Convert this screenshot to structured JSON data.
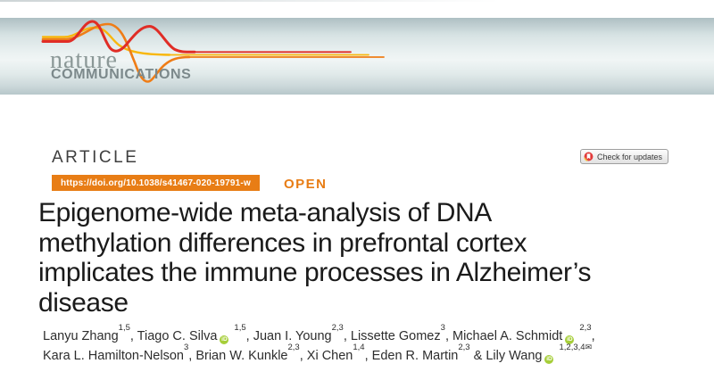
{
  "masthead": {
    "journal_name": "nature",
    "journal_subtitle": "COMMUNICATIONS"
  },
  "article": {
    "kicker": "ARTICLE",
    "doi": "https://doi.org/10.1038/s41467-020-19791-w",
    "open_label": "OPEN",
    "check_updates_label": "Check for updates",
    "title_lines": [
      "Epigenome-wide meta-analysis of DNA",
      "methylation differences in prefrontal cortex",
      "implicates the immune processes in Alzheimer’s",
      "disease"
    ]
  },
  "authors": {
    "lines": [
      [
        {
          "name": "Lanyu Zhang",
          "affiliations": "1,5",
          "orcid": false,
          "email": false,
          "sep": ", "
        },
        {
          "name": "Tiago C. Silva",
          "affiliations": "1,5",
          "orcid": true,
          "email": false,
          "sep": ", "
        },
        {
          "name": "Juan I. Young",
          "affiliations": "2,3",
          "orcid": false,
          "email": false,
          "sep": ", "
        },
        {
          "name": "Lissette Gomez",
          "affiliations": "3",
          "orcid": false,
          "email": false,
          "sep": ", "
        },
        {
          "name": "Michael A. Schmidt",
          "affiliations": "2,3",
          "orcid": true,
          "email": false,
          "sep": ","
        }
      ],
      [
        {
          "name": "Kara L. Hamilton-Nelson",
          "affiliations": "3",
          "orcid": false,
          "email": false,
          "sep": ", "
        },
        {
          "name": "Brian W. Kunkle",
          "affiliations": "2,3",
          "orcid": false,
          "email": false,
          "sep": ", "
        },
        {
          "name": "Xi Chen",
          "affiliations": "1,4",
          "orcid": false,
          "email": false,
          "sep": ", "
        },
        {
          "name": "Eden R. Martin",
          "affiliations": "2,3",
          "orcid": false,
          "email": false,
          "sep": " & "
        },
        {
          "name": "Lily Wang",
          "affiliations": "1,2,3,4",
          "orcid": true,
          "email": true,
          "sep": ""
        }
      ]
    ]
  },
  "icons": {
    "orcid_text": "iD",
    "email_glyph": "✉",
    "crossmark": "crossmark-circle-bookmark"
  },
  "colors": {
    "accent_orange": "#e87d15",
    "ribbon_red": "#e02d26",
    "ribbon_orange": "#ef7d17",
    "ribbon_yellow": "#f8b70d",
    "orcid_green": "#a6ce39",
    "crossmark_red": "#e23b3b",
    "crossmark_yellow": "#f7c341",
    "banner_top": "#aebfc3",
    "banner_mid": "#f0f5f5",
    "title_text": "#1a1a1a",
    "logo_gray": "#8b9897"
  }
}
